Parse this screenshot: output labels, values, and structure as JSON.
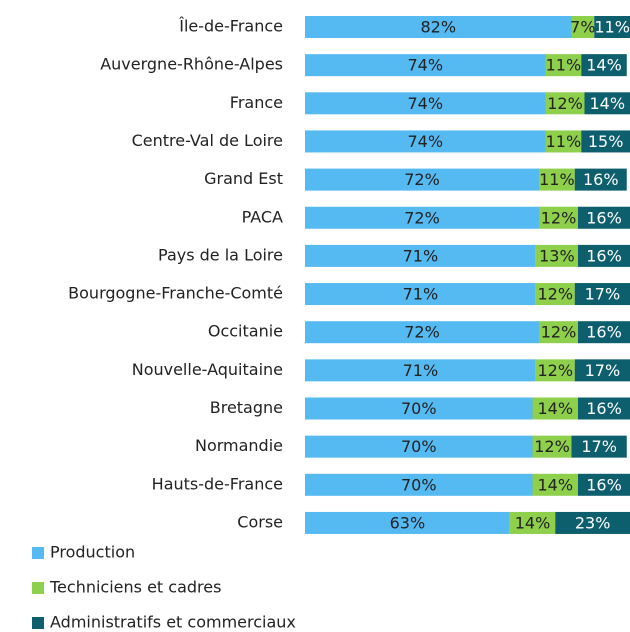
{
  "chart_data": {
    "type": "bar",
    "orientation": "horizontal",
    "stacked": true,
    "categories": [
      "Île-de-France",
      "Auvergne-Rhône-Alpes",
      "France",
      "Centre-Val de Loire",
      "Grand Est",
      "PACA",
      "Pays de la Loire",
      "Bourgogne-Franche-Comté",
      "Occitanie",
      "Nouvelle-Aquitaine",
      "Bretagne",
      "Normandie",
      "Hauts-de-France",
      "Corse"
    ],
    "xlim": [
      0,
      100
    ],
    "legend": "bottom-left",
    "series": [
      {
        "name": "Production",
        "color": "#55b9f2",
        "values": [
          82,
          74,
          74,
          74,
          72,
          72,
          71,
          71,
          72,
          71,
          70,
          70,
          70,
          63
        ],
        "value_labels": [
          "82%",
          "74%",
          "74%",
          "74%",
          "72%",
          "72%",
          "71%",
          "71%",
          "72%",
          "71%",
          "70%",
          "70%",
          "70%",
          "63%"
        ]
      },
      {
        "name": "Techniciens et cadres",
        "color": "#8ecf4c",
        "values": [
          7,
          11,
          12,
          11,
          11,
          12,
          13,
          12,
          12,
          12,
          14,
          12,
          14,
          14
        ],
        "value_labels": [
          "7%",
          "11%",
          "12%",
          "11%",
          "11%",
          "12%",
          "13%",
          "12%",
          "12%",
          "12%",
          "14%",
          "12%",
          "14%",
          "14%"
        ]
      },
      {
        "name": "Administratifs et commerciaux",
        "color": "#0e5f6d",
        "values": [
          11,
          14,
          14,
          15,
          16,
          16,
          16,
          17,
          16,
          17,
          16,
          17,
          16,
          23
        ],
        "value_labels": [
          "11%",
          "14%",
          "14%",
          "15%",
          "16%",
          "16%",
          "16%",
          "17%",
          "16%",
          "17%",
          "16%",
          "17%",
          "16%",
          "23%"
        ]
      }
    ]
  }
}
